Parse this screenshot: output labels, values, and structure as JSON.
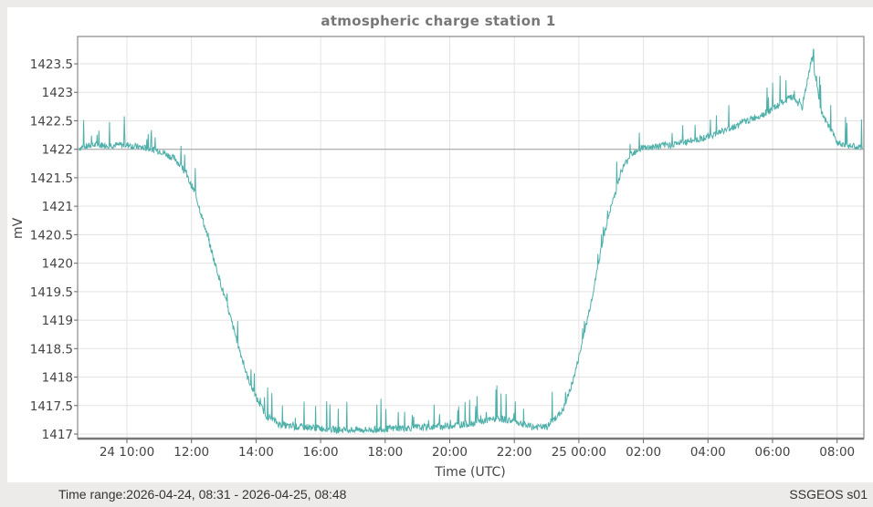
{
  "window": {
    "footer_time_range": "Time range:2026-04-24, 08:31 - 2026-04-25, 08:48",
    "footer_station": "SSGEOS s01"
  },
  "chart_data": {
    "type": "line",
    "title": "atmospheric charge station 1",
    "xlabel": "Time (UTC)",
    "ylabel": "mV",
    "ylim": [
      1417,
      1423.9
    ],
    "yticks": [
      "1417",
      "1417.5",
      "1418",
      "1418.5",
      "1419",
      "1419.5",
      "1420",
      "1420.5",
      "1421",
      "1421.5",
      "1422",
      "1422.5",
      "1423",
      "1423.5"
    ],
    "xticks": [
      "24 10:00",
      "12:00",
      "14:00",
      "16:00",
      "18:00",
      "20:00",
      "22:00",
      "25 00:00",
      "02:00",
      "04:00",
      "06:00",
      "08:00"
    ],
    "xrange": [
      "2026-04-24 08:31",
      "2026-04-25 08:48"
    ],
    "grid": true,
    "reference_line": 1422,
    "line_color": "#4fb0aa",
    "series": [
      {
        "name": "atmospheric charge station 1",
        "x_hours_since_0831": [
          0.0,
          0.5,
          1.0,
          1.5,
          2.0,
          2.5,
          3.0,
          3.3,
          3.6,
          3.9,
          4.1,
          4.3,
          4.6,
          4.9,
          5.2,
          5.5,
          5.8,
          6.2,
          6.6,
          7.0,
          7.5,
          8.0,
          9.0,
          10.0,
          11.0,
          12.0,
          12.5,
          13.0,
          13.5,
          14.0,
          14.5,
          15.0,
          15.3,
          15.6,
          15.9,
          16.2,
          16.5,
          16.8,
          17.1,
          17.4,
          17.8,
          18.2,
          18.8,
          19.5,
          20.2,
          20.8,
          21.4,
          21.8,
          22.1,
          22.4,
          22.7,
          23.0,
          23.5,
          24.0,
          24.28
        ],
        "values": [
          1422.0,
          1422.05,
          1422.05,
          1422.05,
          1422.0,
          1421.95,
          1421.8,
          1421.55,
          1421.2,
          1420.6,
          1420.2,
          1419.8,
          1419.2,
          1418.6,
          1418.0,
          1417.6,
          1417.3,
          1417.15,
          1417.1,
          1417.1,
          1417.08,
          1417.05,
          1417.05,
          1417.08,
          1417.1,
          1417.15,
          1417.2,
          1417.25,
          1417.2,
          1417.1,
          1417.1,
          1417.4,
          1417.9,
          1418.6,
          1419.4,
          1420.3,
          1421.0,
          1421.6,
          1421.9,
          1422.0,
          1422.02,
          1422.05,
          1422.1,
          1422.2,
          1422.35,
          1422.5,
          1422.65,
          1422.8,
          1422.9,
          1422.7,
          1423.6,
          1422.6,
          1422.1,
          1422.02,
          1422.0
        ]
      }
    ]
  }
}
